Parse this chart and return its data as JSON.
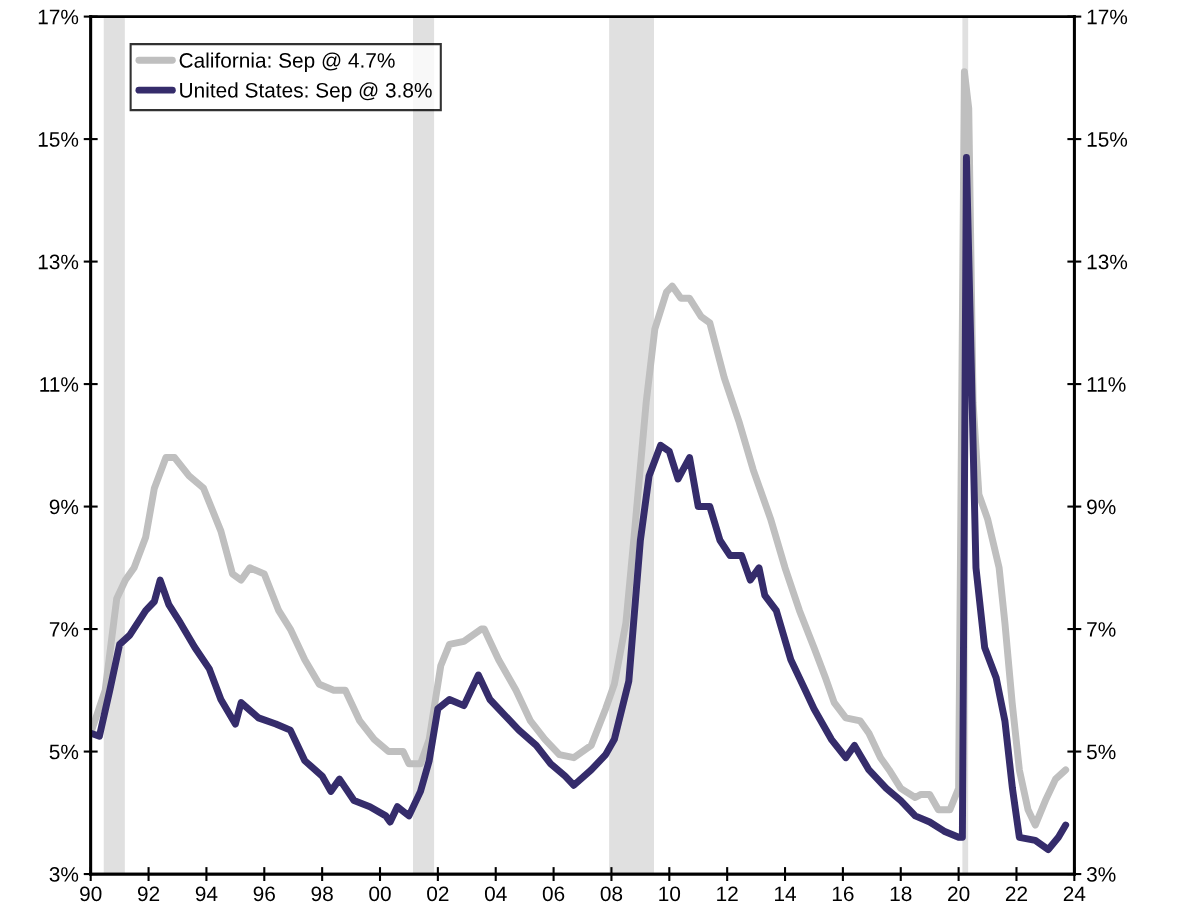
{
  "chart_data": {
    "type": "line",
    "legend": "top left",
    "grid": false,
    "xlim": [
      1990,
      2024
    ],
    "xticks": [
      {
        "value": 1990,
        "label": "90"
      },
      {
        "value": 1992,
        "label": "92"
      },
      {
        "value": 1994,
        "label": "94"
      },
      {
        "value": 1996,
        "label": "96"
      },
      {
        "value": 1998,
        "label": "98"
      },
      {
        "value": 2000,
        "label": "00"
      },
      {
        "value": 2002,
        "label": "02"
      },
      {
        "value": 2004,
        "label": "04"
      },
      {
        "value": 2006,
        "label": "06"
      },
      {
        "value": 2008,
        "label": "08"
      },
      {
        "value": 2010,
        "label": "10"
      },
      {
        "value": 2012,
        "label": "12"
      },
      {
        "value": 2014,
        "label": "14"
      },
      {
        "value": 2016,
        "label": "16"
      },
      {
        "value": 2018,
        "label": "18"
      },
      {
        "value": 2020,
        "label": "20"
      },
      {
        "value": 2022,
        "label": "22"
      },
      {
        "value": 2024,
        "label": "24"
      }
    ],
    "ylim": [
      3,
      17
    ],
    "yticks": [
      {
        "value": 3,
        "label": "3%"
      },
      {
        "value": 5,
        "label": "5%"
      },
      {
        "value": 7,
        "label": "7%"
      },
      {
        "value": 9,
        "label": "9%"
      },
      {
        "value": 11,
        "label": "11%"
      },
      {
        "value": 13,
        "label": "13%"
      },
      {
        "value": 15,
        "label": "15%"
      },
      {
        "value": 17,
        "label": "17%"
      }
    ],
    "y2lim": [
      3,
      17
    ],
    "y2ticks": [
      {
        "value": 3,
        "label": "3%"
      },
      {
        "value": 5,
        "label": "5%"
      },
      {
        "value": 7,
        "label": "7%"
      },
      {
        "value": 9,
        "label": "9%"
      },
      {
        "value": 11,
        "label": "11%"
      },
      {
        "value": 13,
        "label": "13%"
      },
      {
        "value": 15,
        "label": "15%"
      },
      {
        "value": 17,
        "label": "17%"
      }
    ],
    "bands": [
      {
        "axis": "x",
        "from": 1990.45,
        "to": 1991.18,
        "color": "#e0e0e0"
      },
      {
        "axis": "x",
        "from": 2001.14,
        "to": 2001.87,
        "color": "#e0e0e0"
      },
      {
        "axis": "x",
        "from": 2007.92,
        "to": 2009.47,
        "color": "#e0e0e0"
      },
      {
        "axis": "x",
        "from": 2020.13,
        "to": 2020.33,
        "color": "#e0e0e0"
      }
    ],
    "series": [
      {
        "name": "California: Sep @ 4.7%",
        "color": "#bfbfbf",
        "x": [
          1990.0,
          1990.5,
          1990.9,
          1991.2,
          1991.5,
          1991.9,
          1992.2,
          1992.6,
          1992.9,
          1993.4,
          1993.9,
          1994.5,
          1994.9,
          1995.2,
          1995.5,
          1996.0,
          1996.5,
          1996.9,
          1997.4,
          1997.9,
          1998.4,
          1998.8,
          1999.3,
          1999.8,
          2000.3,
          2000.8,
          2001.0,
          2001.4,
          2001.7,
          2002.1,
          2002.4,
          2002.9,
          2003.5,
          2003.6,
          2004.1,
          2004.7,
          2005.2,
          2005.7,
          2006.2,
          2006.7,
          2007.3,
          2007.8,
          2008.1,
          2008.5,
          2008.8,
          2009.2,
          2009.5,
          2009.9,
          2010.1,
          2010.4,
          2010.7,
          2011.1,
          2011.4,
          2011.9,
          2012.4,
          2012.9,
          2013.5,
          2014.0,
          2014.5,
          2015.0,
          2015.4,
          2015.7,
          2016.1,
          2016.6,
          2016.9,
          2017.3,
          2017.6,
          2018.0,
          2018.5,
          2018.7,
          2019.0,
          2019.3,
          2019.7,
          2020.0,
          2020.2,
          2020.35,
          2020.5,
          2020.7,
          2021.0,
          2021.4,
          2021.6,
          2021.85,
          2022.1,
          2022.4,
          2022.65,
          2023.0,
          2023.35,
          2023.7
        ],
        "values": [
          5.3,
          6.0,
          7.5,
          7.8,
          8.0,
          8.5,
          9.3,
          9.8,
          9.8,
          9.5,
          9.3,
          8.6,
          7.9,
          7.8,
          8.0,
          7.9,
          7.3,
          7.0,
          6.5,
          6.1,
          6.0,
          6.0,
          5.5,
          5.2,
          5.0,
          5.0,
          4.8,
          4.8,
          5.2,
          6.4,
          6.75,
          6.8,
          7.0,
          7.0,
          6.5,
          6.0,
          5.5,
          5.2,
          4.95,
          4.9,
          5.1,
          5.7,
          6.1,
          7.1,
          8.6,
          10.7,
          11.9,
          12.5,
          12.6,
          12.4,
          12.4,
          12.1,
          12.0,
          11.1,
          10.4,
          9.6,
          8.8,
          8.0,
          7.3,
          6.7,
          6.2,
          5.8,
          5.55,
          5.5,
          5.3,
          4.9,
          4.7,
          4.4,
          4.25,
          4.3,
          4.3,
          4.05,
          4.05,
          4.4,
          16.1,
          15.5,
          10.7,
          9.2,
          8.8,
          8.0,
          7.1,
          5.8,
          4.7,
          4.05,
          3.8,
          4.2,
          4.55,
          4.7
        ]
      },
      {
        "name": "United States: Sep @ 3.8%",
        "color": "#352c6b",
        "x": [
          1990.0,
          1990.3,
          1990.66,
          1991.0,
          1991.35,
          1991.9,
          1992.2,
          1992.4,
          1992.7,
          1993.1,
          1993.6,
          1994.1,
          1994.5,
          1995.0,
          1995.2,
          1995.8,
          1996.4,
          1996.9,
          1997.4,
          1998.0,
          1998.3,
          1998.6,
          1999.1,
          1999.65,
          2000.2,
          2000.35,
          2000.6,
          2001.0,
          2001.4,
          2001.7,
          2002.0,
          2002.4,
          2002.9,
          2003.4,
          2003.8,
          2004.3,
          2004.8,
          2005.4,
          2005.9,
          2006.4,
          2006.7,
          2007.3,
          2007.8,
          2008.1,
          2008.6,
          2009.0,
          2009.3,
          2009.7,
          2010.0,
          2010.3,
          2010.7,
          2011.0,
          2011.4,
          2011.75,
          2012.1,
          2012.5,
          2012.8,
          2013.1,
          2013.3,
          2013.7,
          2014.2,
          2014.7,
          2015.0,
          2015.6,
          2016.1,
          2016.4,
          2016.9,
          2017.5,
          2018.0,
          2018.5,
          2019.0,
          2019.5,
          2020.0,
          2020.13,
          2020.27,
          2020.6,
          2020.9,
          2021.3,
          2021.6,
          2021.86,
          2022.1,
          2022.65,
          2023.1,
          2023.45,
          2023.7
        ],
        "values": [
          5.3,
          5.25,
          6.0,
          6.75,
          6.9,
          7.3,
          7.45,
          7.8,
          7.4,
          7.1,
          6.7,
          6.35,
          5.85,
          5.45,
          5.8,
          5.55,
          5.45,
          5.35,
          4.85,
          4.6,
          4.35,
          4.55,
          4.2,
          4.1,
          3.95,
          3.85,
          4.1,
          3.95,
          4.35,
          4.85,
          5.7,
          5.85,
          5.75,
          6.25,
          5.85,
          5.6,
          5.35,
          5.1,
          4.8,
          4.6,
          4.45,
          4.7,
          4.95,
          5.2,
          6.15,
          8.45,
          9.5,
          10.0,
          9.9,
          9.45,
          9.8,
          9.0,
          9.0,
          8.45,
          8.2,
          8.2,
          7.8,
          8.0,
          7.55,
          7.3,
          6.5,
          6.0,
          5.7,
          5.2,
          4.9,
          5.1,
          4.7,
          4.4,
          4.2,
          3.95,
          3.85,
          3.7,
          3.6,
          3.6,
          14.7,
          8.0,
          6.7,
          6.2,
          5.5,
          4.4,
          3.6,
          3.55,
          3.4,
          3.6,
          3.8
        ]
      }
    ]
  }
}
